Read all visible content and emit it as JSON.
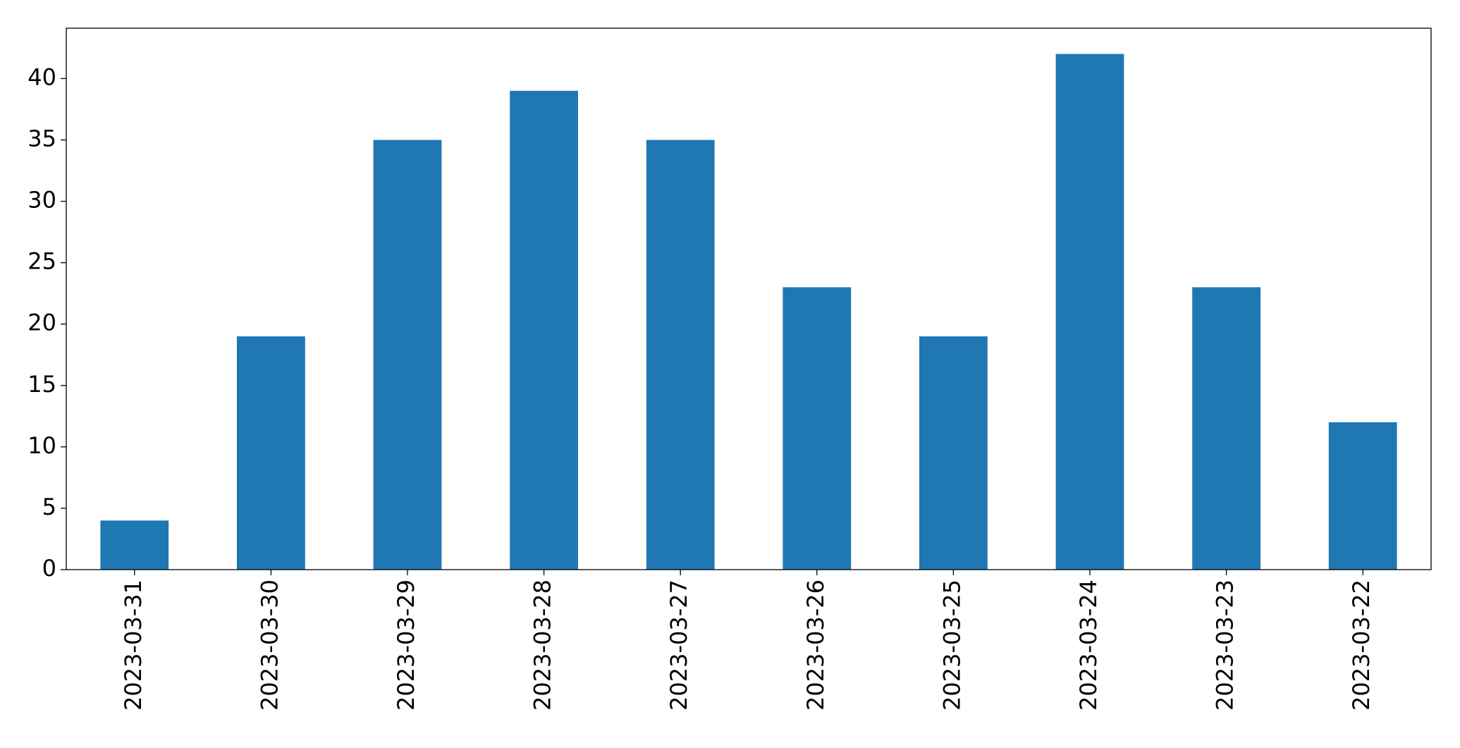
{
  "chart_data": {
    "type": "bar",
    "categories": [
      "2023-03-31",
      "2023-03-30",
      "2023-03-29",
      "2023-03-28",
      "2023-03-27",
      "2023-03-26",
      "2023-03-25",
      "2023-03-24",
      "2023-03-23",
      "2023-03-22"
    ],
    "values": [
      4,
      19,
      35,
      39,
      35,
      23,
      19,
      42,
      23,
      12
    ],
    "color": "#1f77b4",
    "ylim": [
      0,
      44.1
    ],
    "yticks": [
      0,
      5,
      10,
      15,
      20,
      25,
      30,
      35,
      40
    ],
    "grid": false
  }
}
